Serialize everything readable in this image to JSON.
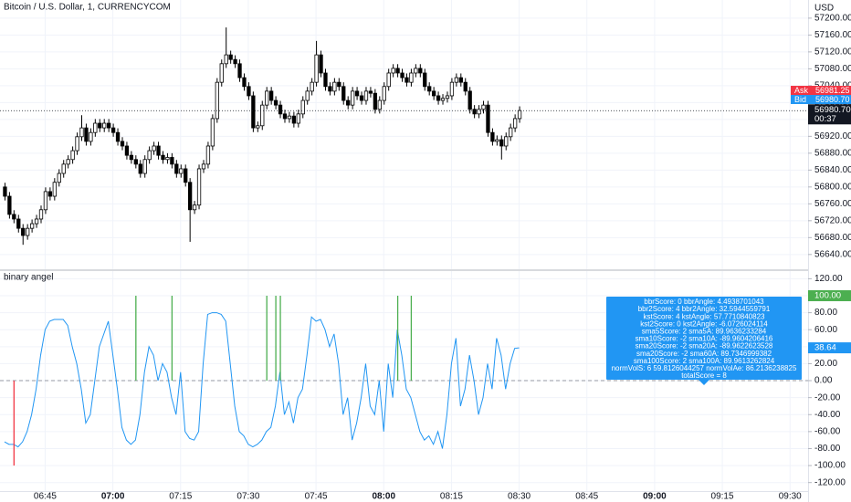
{
  "header": {
    "title": "Bitcoin / U.S. Dollar, 1, CURRENCYCOM",
    "currency": "USD"
  },
  "quote": {
    "ask_label": "Ask",
    "ask": "56981.25",
    "bid_label": "Bid",
    "bid": "56980.70",
    "countdown": "00:37"
  },
  "tooltip": {
    "lines": [
      "bbrScore: 0  bbrAngle: 4.4938701043",
      "bbr2Score: 4  bbr2Angle: 32.5944559791",
      "kstScore: 4  kstAngle: 57.7710840823",
      "kst2Score: 0  kst2Angle: -6.0726024114",
      "sma5Score: 2  sma5A: 89.9636233284",
      "sma10Score: -2  sma10A: -89.9604206416",
      "sma20Score: -2  sma20A: -89.9622623528",
      "sma20Score: -2  sma60A: 89.7346999382",
      "sma100Score: 2  sma100A: 89.9613262824",
      "normVolS: 6  59.8126044257 normVolAe: 86.2136238825",
      "totalScore = 8"
    ]
  },
  "chart_data": [
    {
      "type": "candlestick",
      "x": [
        "06:36",
        "06:37",
        "06:38",
        "06:39",
        "06:40",
        "06:41",
        "06:42",
        "06:43",
        "06:44",
        "06:45",
        "06:46",
        "06:47",
        "06:48",
        "06:49",
        "06:50",
        "06:51",
        "06:52",
        "06:53",
        "06:54",
        "06:55",
        "06:56",
        "06:57",
        "06:58",
        "06:59",
        "07:00",
        "07:01",
        "07:02",
        "07:03",
        "07:04",
        "07:05",
        "07:06",
        "07:07",
        "07:08",
        "07:09",
        "07:10",
        "07:11",
        "07:12",
        "07:13",
        "07:14",
        "07:15",
        "07:16",
        "07:17",
        "07:18",
        "07:19",
        "07:20",
        "07:21",
        "07:22",
        "07:23",
        "07:24",
        "07:25",
        "07:26",
        "07:27",
        "07:28",
        "07:29",
        "07:30",
        "07:31",
        "07:32",
        "07:33",
        "07:34",
        "07:35",
        "07:36",
        "07:37",
        "07:38",
        "07:39",
        "07:40",
        "07:41",
        "07:42",
        "07:43",
        "07:44",
        "07:45",
        "07:46",
        "07:47",
        "07:48",
        "07:49",
        "07:50",
        "07:51",
        "07:52",
        "07:53",
        "07:54",
        "07:55",
        "07:56",
        "07:57",
        "07:58",
        "07:59",
        "08:00",
        "08:01",
        "08:02",
        "08:03",
        "08:04",
        "08:05",
        "08:06",
        "08:07",
        "08:08",
        "08:09",
        "08:10",
        "08:11",
        "08:12",
        "08:13",
        "08:14",
        "08:15",
        "08:16",
        "08:17",
        "08:18",
        "08:19",
        "08:20",
        "08:21",
        "08:22",
        "08:23",
        "08:24",
        "08:25",
        "08:26",
        "08:27",
        "08:28",
        "08:29",
        "08:30"
      ],
      "open": [
        56800,
        56778,
        56735,
        56724,
        56702,
        56685,
        56702,
        56713,
        56724,
        56746,
        56789,
        56778,
        56811,
        56832,
        56854,
        56865,
        56886,
        56919,
        56940,
        56908,
        56929,
        56951,
        56940,
        56951,
        56940,
        56929,
        56908,
        56897,
        56875,
        56865,
        56854,
        56832,
        56865,
        56886,
        56897,
        56875,
        56865,
        56870,
        56854,
        56832,
        56843,
        56811,
        56746,
        56757,
        56843,
        56854,
        56897,
        56962,
        57048,
        57092,
        57113,
        57102,
        57092,
        57059,
        57038,
        57016,
        56940,
        56945,
        56994,
        57027,
        57005,
        56994,
        56973,
        56962,
        56968,
        56951,
        56973,
        57005,
        57027,
        57048,
        57113,
        57070,
        57038,
        57027,
        57048,
        57038,
        57005,
        56994,
        57027,
        57016,
        57005,
        57027,
        57022,
        56984,
        57005,
        57038,
        57070,
        57081,
        57070,
        57059,
        57048,
        57070,
        57081,
        57070,
        57038,
        57027,
        57016,
        57005,
        57010,
        57016,
        57048,
        57059,
        57048,
        57027,
        56984,
        56973,
        56984,
        56994,
        56929,
        56908,
        56912,
        56897,
        56919,
        56940,
        56962
      ],
      "high": [
        56810,
        56788,
        56745,
        56734,
        56712,
        56712,
        56723,
        56734,
        56756,
        56799,
        56799,
        56821,
        56842,
        56864,
        56875,
        56896,
        56929,
        56970,
        56950,
        56939,
        56961,
        56961,
        56961,
        56961,
        56950,
        56939,
        56918,
        56907,
        56885,
        56875,
        56864,
        56875,
        56896,
        56907,
        56907,
        56885,
        56880,
        56880,
        56864,
        56853,
        56853,
        56821,
        56767,
        56853,
        56864,
        56907,
        56972,
        57058,
        57102,
        57178,
        57123,
        57112,
        57102,
        57069,
        57048,
        57026,
        56955,
        57004,
        57037,
        57037,
        57015,
        57004,
        56983,
        56978,
        56978,
        56983,
        57015,
        57037,
        57058,
        57146,
        57123,
        57080,
        57048,
        57058,
        57058,
        57048,
        57015,
        57037,
        57037,
        57026,
        57037,
        57037,
        57032,
        57015,
        57048,
        57080,
        57091,
        57091,
        57080,
        57069,
        57080,
        57091,
        57091,
        57080,
        57048,
        57037,
        57026,
        57020,
        57026,
        57058,
        57069,
        57069,
        57058,
        57037,
        56994,
        56994,
        57004,
        57004,
        56939,
        56922,
        56922,
        56929,
        56950,
        56972,
        56991
      ],
      "low": [
        56768,
        56725,
        56714,
        56692,
        56663,
        56675,
        56692,
        56703,
        56714,
        56736,
        56768,
        56768,
        56801,
        56822,
        56844,
        56855,
        56876,
        56909,
        56898,
        56898,
        56919,
        56930,
        56930,
        56930,
        56919,
        56898,
        56887,
        56865,
        56855,
        56844,
        56822,
        56822,
        56855,
        56876,
        56865,
        56855,
        56855,
        56844,
        56822,
        56822,
        56801,
        56670,
        56736,
        56747,
        56833,
        56844,
        56887,
        56952,
        57038,
        57082,
        57092,
        57082,
        57049,
        57028,
        57006,
        56930,
        56930,
        56935,
        56984,
        56995,
        56984,
        56963,
        56952,
        56952,
        56941,
        56941,
        56963,
        56995,
        57017,
        57038,
        57060,
        57028,
        57017,
        57017,
        57028,
        56995,
        56984,
        56984,
        57006,
        56995,
        56995,
        57012,
        56974,
        56974,
        56995,
        57028,
        57060,
        57060,
        57049,
        57038,
        57038,
        57060,
        57060,
        57028,
        57017,
        57006,
        56995,
        56995,
        57000,
        57006,
        57038,
        57038,
        57017,
        56974,
        56963,
        56963,
        56974,
        56919,
        56898,
        56898,
        56865,
        56887,
        56909,
        56930,
        56952
      ],
      "close": [
        56778,
        56735,
        56724,
        56702,
        56685,
        56702,
        56713,
        56724,
        56746,
        56789,
        56778,
        56811,
        56832,
        56854,
        56865,
        56886,
        56919,
        56940,
        56908,
        56929,
        56951,
        56940,
        56951,
        56940,
        56929,
        56908,
        56897,
        56875,
        56865,
        56854,
        56832,
        56865,
        56886,
        56897,
        56875,
        56865,
        56870,
        56854,
        56832,
        56843,
        56811,
        56746,
        56757,
        56843,
        56854,
        56897,
        56962,
        57048,
        57092,
        57113,
        57102,
        57092,
        57059,
        57038,
        57016,
        56940,
        56945,
        56994,
        57027,
        57005,
        56994,
        56973,
        56962,
        56968,
        56951,
        56973,
        57005,
        57027,
        57048,
        57113,
        57070,
        57038,
        57027,
        57048,
        57038,
        57005,
        56994,
        57027,
        57016,
        57005,
        57027,
        57022,
        56984,
        57005,
        57038,
        57070,
        57081,
        57070,
        57059,
        57048,
        57070,
        57081,
        57070,
        57038,
        57027,
        57016,
        57005,
        57010,
        57016,
        57048,
        57059,
        57048,
        57027,
        56984,
        56973,
        56984,
        56994,
        56929,
        56908,
        56912,
        56897,
        56919,
        56940,
        56962,
        56981
      ],
      "up_color": "#ffffff",
      "down_color": "#000000",
      "border_color": "#000000",
      "xlim": [
        "06:35",
        "09:34"
      ],
      "ylim": [
        56605,
        57243
      ],
      "yticks": [
        {
          "value": 57200,
          "label": "57200.00"
        },
        {
          "value": 57160,
          "label": "57160.00"
        },
        {
          "value": 57120,
          "label": "57120.00"
        },
        {
          "value": 57080,
          "label": "57080.00"
        },
        {
          "value": 57040,
          "label": "57040.00"
        },
        {
          "value": 57000,
          "label": "57000.00"
        },
        {
          "value": 56960,
          "label": "56960.00"
        },
        {
          "value": 56920,
          "label": "56920.00"
        },
        {
          "value": 56880,
          "label": "56880.00"
        },
        {
          "value": 56840,
          "label": "56840.00"
        },
        {
          "value": 56800,
          "label": "56800.00"
        },
        {
          "value": 56760,
          "label": "56760.00"
        },
        {
          "value": 56720,
          "label": "56720.00"
        },
        {
          "value": 56680,
          "label": "56680.00"
        },
        {
          "value": 56640,
          "label": "56640.00"
        }
      ],
      "last_price": {
        "value": 56980.7,
        "label": "56980.70"
      },
      "grid": true
    },
    {
      "type": "line",
      "x": [
        "06:36",
        "06:37",
        "06:38",
        "06:39",
        "06:40",
        "06:41",
        "06:42",
        "06:43",
        "06:44",
        "06:45",
        "06:46",
        "06:47",
        "06:48",
        "06:49",
        "06:50",
        "06:51",
        "06:52",
        "06:53",
        "06:54",
        "06:55",
        "06:56",
        "06:57",
        "06:58",
        "06:59",
        "07:00",
        "07:01",
        "07:02",
        "07:03",
        "07:04",
        "07:05",
        "07:06",
        "07:07",
        "07:08",
        "07:09",
        "07:10",
        "07:11",
        "07:12",
        "07:13",
        "07:14",
        "07:15",
        "07:16",
        "07:17",
        "07:18",
        "07:19",
        "07:20",
        "07:21",
        "07:22",
        "07:23",
        "07:24",
        "07:25",
        "07:26",
        "07:27",
        "07:28",
        "07:29",
        "07:30",
        "07:31",
        "07:32",
        "07:33",
        "07:34",
        "07:35",
        "07:36",
        "07:37",
        "07:38",
        "07:39",
        "07:40",
        "07:41",
        "07:42",
        "07:43",
        "07:44",
        "07:45",
        "07:46",
        "07:47",
        "07:48",
        "07:49",
        "07:50",
        "07:51",
        "07:52",
        "07:53",
        "07:54",
        "07:55",
        "07:56",
        "07:57",
        "07:58",
        "07:59",
        "08:00",
        "08:01",
        "08:02",
        "08:03",
        "08:04",
        "08:05",
        "08:06",
        "08:07",
        "08:08",
        "08:09",
        "08:10",
        "08:11",
        "08:12",
        "08:13",
        "08:14",
        "08:15",
        "08:16",
        "08:17",
        "08:18",
        "08:19",
        "08:20",
        "08:21",
        "08:22",
        "08:23",
        "08:24",
        "08:25",
        "08:26",
        "08:27",
        "08:28",
        "08:29",
        "08:30"
      ],
      "series": [
        {
          "name": "binary angel",
          "type": "line",
          "color": "#2196f3",
          "values": [
            -72,
            -75,
            -75,
            -78,
            -72,
            -60,
            -40,
            -10,
            30,
            60,
            70,
            72,
            72,
            72,
            65,
            40,
            20,
            -10,
            -50,
            -40,
            0,
            40,
            55,
            70,
            30,
            -10,
            -55,
            -70,
            -75,
            -70,
            -40,
            10,
            40,
            30,
            0,
            20,
            10,
            -20,
            -40,
            10,
            -60,
            -68,
            -70,
            -60,
            20,
            78,
            80,
            80,
            78,
            70,
            20,
            -30,
            -60,
            -65,
            -75,
            -78,
            -75,
            -70,
            -60,
            -55,
            -30,
            10,
            -40,
            -25,
            -50,
            -20,
            -10,
            30,
            75,
            70,
            72,
            60,
            40,
            55,
            20,
            -40,
            -20,
            -70,
            -50,
            -20,
            20,
            -30,
            -40,
            0,
            -60,
            20,
            -20,
            60,
            30,
            -10,
            -20,
            -40,
            -60,
            -70,
            -65,
            -75,
            -60,
            -80,
            -40,
            20,
            50,
            -30,
            -10,
            30,
            0,
            -40,
            -20,
            20,
            -10,
            50,
            30,
            -10,
            20,
            38,
            38.64
          ]
        },
        {
          "type": "bar",
          "color": "#4caf50",
          "negative_color": "#f23645",
          "level_label": {
            "value": 100,
            "label": "100.00"
          },
          "values": [
            null,
            null,
            -100,
            null,
            null,
            null,
            null,
            null,
            null,
            null,
            null,
            null,
            null,
            null,
            null,
            null,
            null,
            null,
            null,
            null,
            null,
            null,
            null,
            null,
            null,
            null,
            null,
            null,
            null,
            100,
            null,
            null,
            null,
            null,
            null,
            null,
            null,
            100,
            null,
            null,
            null,
            null,
            null,
            null,
            null,
            null,
            null,
            null,
            null,
            null,
            null,
            null,
            null,
            null,
            null,
            null,
            null,
            null,
            100,
            null,
            100,
            100,
            null,
            null,
            null,
            null,
            null,
            null,
            null,
            null,
            null,
            null,
            null,
            null,
            null,
            null,
            null,
            null,
            null,
            null,
            null,
            null,
            null,
            null,
            null,
            null,
            null,
            100,
            null,
            null,
            100,
            null,
            null,
            null,
            null,
            null,
            null,
            null,
            null,
            null,
            null,
            null,
            null,
            null,
            null,
            null,
            null,
            null,
            null,
            null,
            null,
            null,
            null,
            null,
            null
          ]
        }
      ],
      "xlim": [
        "06:35",
        "09:34"
      ],
      "xticks": [
        "06:45",
        "07:00",
        "07:15",
        "07:30",
        "07:45",
        "08:00",
        "08:15",
        "08:30",
        "08:45",
        "09:00",
        "09:15",
        "09:30"
      ],
      "ylim": [
        -130,
        129
      ],
      "yticks": [
        {
          "value": 120,
          "label": "120.00"
        },
        {
          "value": 100,
          "label": "100.00"
        },
        {
          "value": 80,
          "label": "80.00"
        },
        {
          "value": 60,
          "label": "60.00"
        },
        {
          "value": 40,
          "label": "40.00"
        },
        {
          "value": 20,
          "label": "20.00"
        },
        {
          "value": 0,
          "label": "0.00"
        },
        {
          "value": -20,
          "label": "-20.00"
        },
        {
          "value": -40,
          "label": "-40.00"
        },
        {
          "value": -60,
          "label": "-60.00"
        },
        {
          "value": -80,
          "label": "-80.00"
        },
        {
          "value": -100,
          "label": "-100.00"
        },
        {
          "value": -120,
          "label": "-120.00"
        }
      ],
      "zero_line": true,
      "grid": true
    }
  ]
}
